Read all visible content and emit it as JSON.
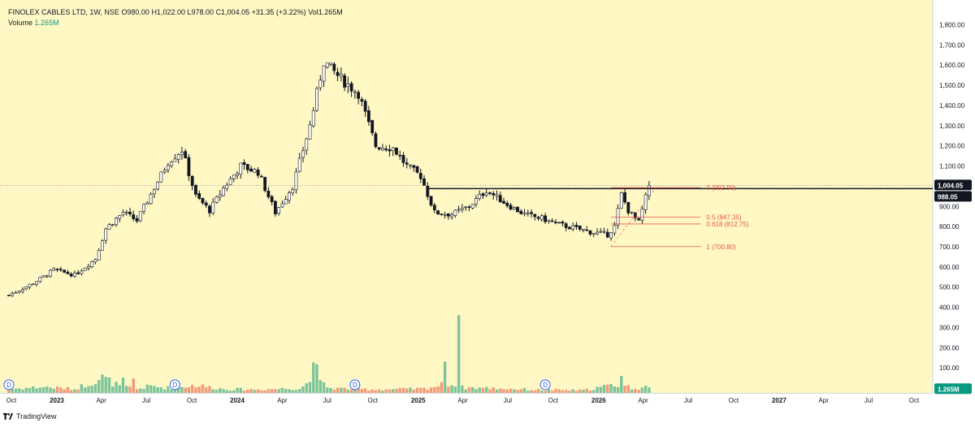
{
  "header": {
    "symbol": "FINOLEX CABLES LTD, 1W, NSE",
    "open": "O980.00",
    "high": "H1,022.00",
    "low": "L978.00",
    "close": "C1,004.05",
    "change": "+31.35 (+3.22%)",
    "volume": "Vol1.265M",
    "volume_row_label": "Volume",
    "volume_row_value": "1.265M"
  },
  "footer": {
    "brand": "TradingView"
  },
  "colors": {
    "background": "#fff8c4",
    "up": "#ffffff",
    "down": "#131722",
    "fib": "#e8554e",
    "vol_up": "#7cc49b",
    "vol_down": "#f19a7a",
    "current_price": "#131722",
    "volume_badge": "#089981"
  },
  "price_labels": {
    "current": "1,004.05",
    "line": "988.05",
    "volume": "1.265M"
  },
  "chart_data": {
    "type": "candlestick",
    "timeframe": "1W",
    "ylim": [
      0,
      1850
    ],
    "y_ticks": [
      100,
      200,
      300,
      400,
      500,
      600,
      700,
      800,
      900,
      1000,
      1100,
      1200,
      1300,
      1400,
      1500,
      1600,
      1700,
      1800
    ],
    "y_tick_labels": [
      "100.00",
      "200.00",
      "300.00",
      "400.00",
      "500.00",
      "600.00",
      "700.00",
      "800.00",
      "900.00",
      "1,000.00",
      "1,100.00",
      "1,200.00",
      "1,300.00",
      "1,400.00",
      "1,500.00",
      "1,600.00",
      "1,700.00",
      "1,800.00"
    ],
    "x_tick_labels": [
      "Oct",
      "2023",
      "Apr",
      "Jul",
      "Oct",
      "2024",
      "Apr",
      "Jul",
      "Oct",
      "2025",
      "Apr",
      "Jul",
      "Oct",
      "2026",
      "Apr",
      "Jul",
      "Oct",
      "2027",
      "Apr",
      "Jul",
      "Oct"
    ],
    "x_tick_dates": [
      "2022-10-01",
      "2023-01-01",
      "2023-04-01",
      "2023-07-01",
      "2023-10-01",
      "2024-01-01",
      "2024-04-01",
      "2024-07-01",
      "2024-10-01",
      "2025-01-01",
      "2025-04-01",
      "2025-07-01",
      "2025-10-01",
      "2026-01-01",
      "2026-04-01",
      "2026-07-01",
      "2026-10-01",
      "2027-01-01",
      "2027-04-01",
      "2027-07-01",
      "2027-10-01"
    ],
    "x_ticks_in_bold": [
      "2023",
      "2024",
      "2025",
      "2026",
      "2027"
    ],
    "close_path": [
      [
        "2022-09-26",
        460
      ],
      [
        "2022-11-14",
        520
      ],
      [
        "2022-12-26",
        585
      ],
      [
        "2023-02-06",
        560
      ],
      [
        "2023-03-20",
        640
      ],
      [
        "2023-04-10",
        790
      ],
      [
        "2023-05-15",
        870
      ],
      [
        "2023-06-12",
        830
      ],
      [
        "2023-07-10",
        960
      ],
      [
        "2023-08-14",
        1120
      ],
      [
        "2023-09-11",
        1180
      ],
      [
        "2023-10-09",
        950
      ],
      [
        "2023-11-06",
        880
      ],
      [
        "2023-12-04",
        990
      ],
      [
        "2024-01-08",
        1100
      ],
      [
        "2024-02-12",
        1070
      ],
      [
        "2024-03-18",
        870
      ],
      [
        "2024-04-22",
        1000
      ],
      [
        "2024-05-27",
        1300
      ],
      [
        "2024-06-24",
        1620
      ],
      [
        "2024-07-29",
        1530
      ],
      [
        "2024-09-02",
        1460
      ],
      [
        "2024-10-07",
        1200
      ],
      [
        "2024-11-11",
        1190
      ],
      [
        "2024-12-09",
        1100
      ],
      [
        "2025-01-06",
        1050
      ],
      [
        "2025-02-03",
        870
      ],
      [
        "2025-03-10",
        860
      ],
      [
        "2025-04-14",
        900
      ],
      [
        "2025-05-19",
        980
      ],
      [
        "2025-06-30",
        910
      ],
      [
        "2025-08-04",
        860
      ],
      [
        "2025-09-08",
        840
      ],
      [
        "2025-10-13",
        810
      ],
      [
        "2025-11-17",
        790
      ],
      [
        "2025-12-22",
        770
      ],
      [
        "2026-01-19",
        760
      ],
      [
        "2026-02-02",
        800
      ],
      [
        "2026-02-16",
        960
      ],
      [
        "2026-03-02",
        880
      ],
      [
        "2026-03-23",
        820
      ],
      [
        "2026-04-13",
        1004
      ]
    ],
    "volume_path": [
      [
        "2022-09-26",
        0.9
      ],
      [
        "2022-12-05",
        1.4
      ],
      [
        "2023-02-06",
        0.9
      ],
      [
        "2023-04-03",
        3.6
      ],
      [
        "2023-05-08",
        1.6
      ],
      [
        "2023-06-12",
        0.9
      ],
      [
        "2023-07-10",
        1.6
      ],
      [
        "2023-08-14",
        1.2
      ],
      [
        "2023-10-09",
        1.8
      ],
      [
        "2023-12-04",
        0.9
      ],
      [
        "2024-02-12",
        0.8
      ],
      [
        "2024-05-06",
        1.1
      ],
      [
        "2024-06-03",
        3.2
      ],
      [
        "2024-07-08",
        1.1
      ],
      [
        "2024-10-07",
        0.8
      ],
      [
        "2024-12-09",
        0.9
      ],
      [
        "2025-01-13",
        1.0
      ],
      [
        "2025-03-03",
        2.2
      ],
      [
        "2025-03-24",
        1.3
      ],
      [
        "2025-06-02",
        1.1
      ],
      [
        "2025-09-01",
        0.7
      ],
      [
        "2025-12-01",
        0.6
      ],
      [
        "2026-02-16",
        2.2
      ],
      [
        "2026-03-09",
        1.1
      ],
      [
        "2026-04-13",
        1.265
      ]
    ],
    "volume_spikes": [
      [
        "2023-05-15",
        3.6
      ],
      [
        "2023-06-05",
        3.4
      ],
      [
        "2024-06-03",
        7.2
      ],
      [
        "2024-06-10",
        6.8
      ],
      [
        "2025-02-24",
        7.4
      ],
      [
        "2025-03-24",
        18.4
      ],
      [
        "2026-02-16",
        4.0
      ]
    ],
    "dividend_markers": [
      "2022-09-26",
      "2023-08-28",
      "2024-08-26",
      "2025-09-15"
    ],
    "dividend_label": "D",
    "horizontal_line": 988.05,
    "fib_levels": [
      {
        "ratio": "0",
        "value": 992.9,
        "label": "0 (992.90)"
      },
      {
        "ratio": "0.5",
        "value": 847.35,
        "label": "0.5 (847.35)"
      },
      {
        "ratio": "0.618",
        "value": 812.75,
        "label": "0.618 (812.75)"
      },
      {
        "ratio": "1",
        "value": 700.8,
        "label": "1 (700.80)"
      }
    ],
    "fib_range": [
      "2026-01-26",
      "2026-04-27"
    ],
    "last_close": 1004.05,
    "current_volume": 1.265
  }
}
